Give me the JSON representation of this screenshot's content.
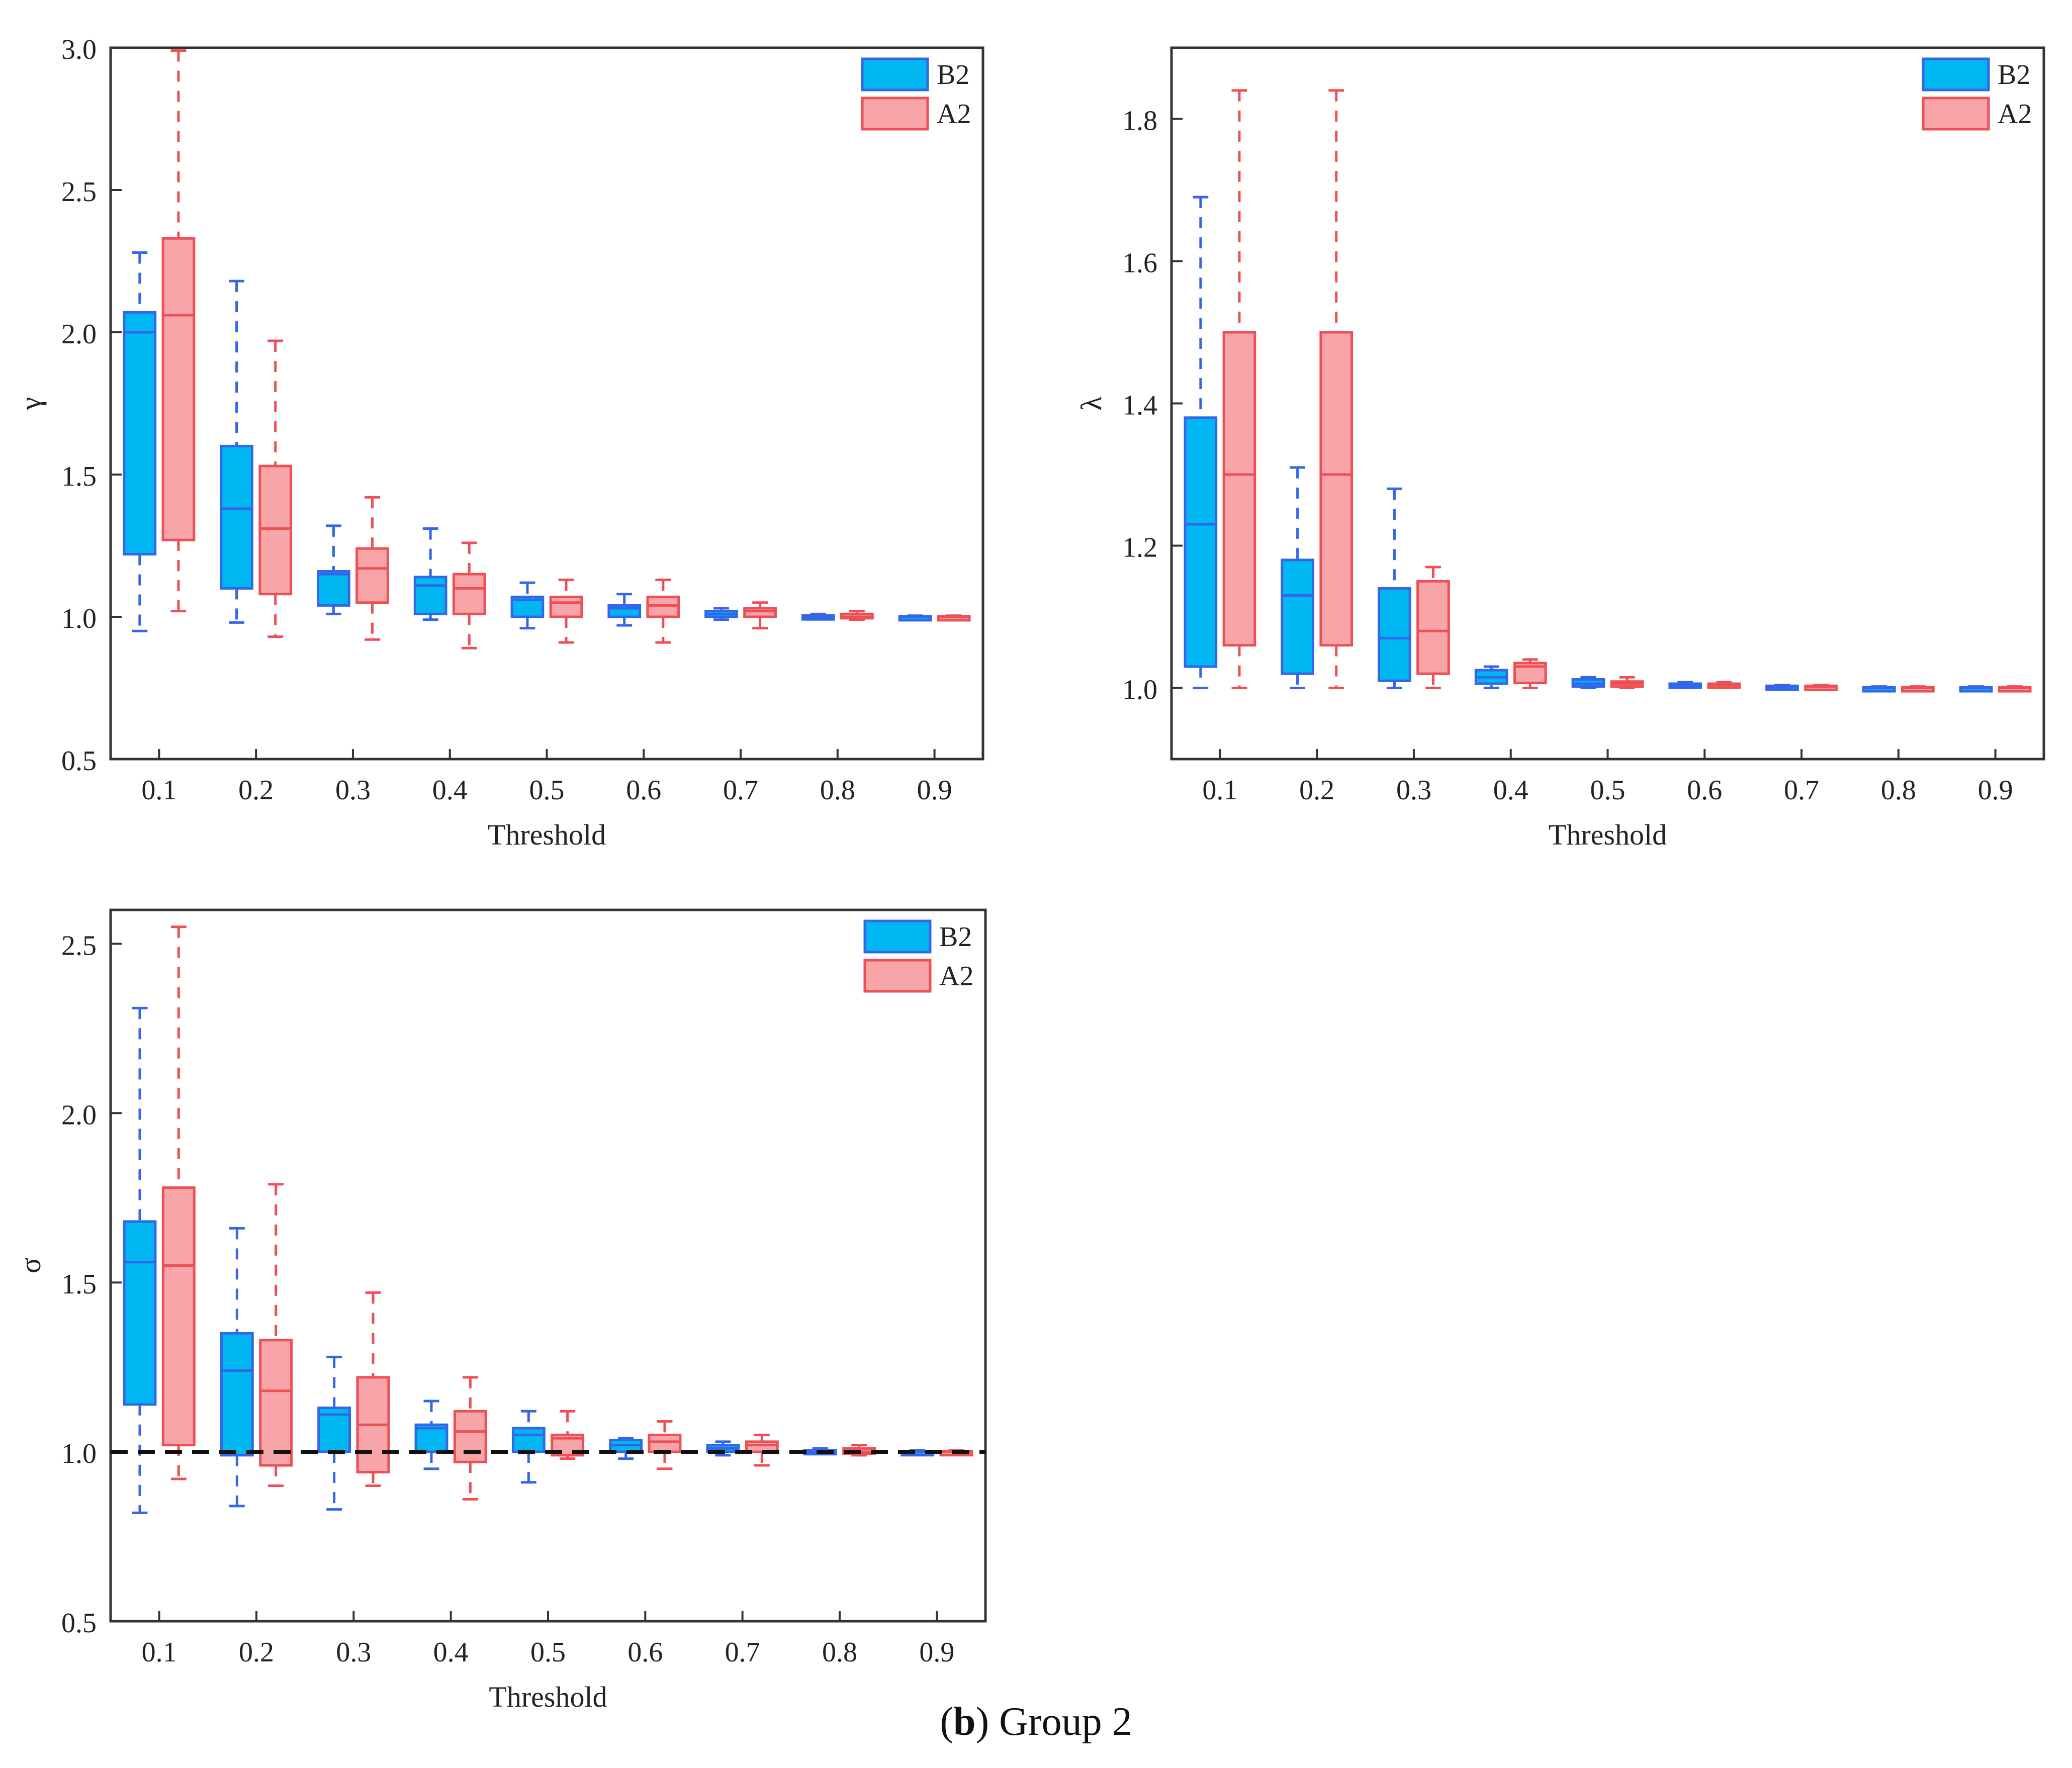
{
  "figure_caption": {
    "panel_label": "b",
    "text": "Group 2"
  },
  "colors": {
    "B2_fill": "#00B7F1",
    "B2_edge": "#3366E8",
    "A2_fill": "#F7A5A8",
    "A2_edge": "#EE4F54",
    "reference_line": "#111111",
    "axis": "#333333"
  },
  "chart_data": [
    {
      "type": "box",
      "id": "gamma",
      "ylabel": "γ",
      "xlabel": "Threshold",
      "categories": [
        "0.1",
        "0.2",
        "0.3",
        "0.4",
        "0.5",
        "0.6",
        "0.7",
        "0.8",
        "0.9"
      ],
      "ylim": [
        0.5,
        3.0
      ],
      "yticks": [
        "0.5",
        "1.0",
        "1.5",
        "2.0",
        "2.5",
        "3.0"
      ],
      "legend": [
        "B2",
        "A2"
      ],
      "legend_position": "top-right",
      "series": [
        {
          "name": "B2",
          "boxes": [
            {
              "min": 0.95,
              "q1": 1.22,
              "median": 2.0,
              "q3": 2.07,
              "max": 2.28
            },
            {
              "min": 0.98,
              "q1": 1.1,
              "median": 1.38,
              "q3": 1.6,
              "max": 2.18
            },
            {
              "min": 1.01,
              "q1": 1.04,
              "median": 1.15,
              "q3": 1.16,
              "max": 1.32
            },
            {
              "min": 0.99,
              "q1": 1.01,
              "median": 1.11,
              "q3": 1.14,
              "max": 1.31
            },
            {
              "min": 0.96,
              "q1": 1.0,
              "median": 1.06,
              "q3": 1.07,
              "max": 1.12
            },
            {
              "min": 0.97,
              "q1": 1.0,
              "median": 1.03,
              "q3": 1.04,
              "max": 1.08
            },
            {
              "min": 0.99,
              "q1": 1.0,
              "median": 1.01,
              "q3": 1.02,
              "max": 1.03
            },
            {
              "min": 1.0,
              "q1": 1.0,
              "median": 1.0,
              "q3": 1.005,
              "max": 1.01
            },
            {
              "min": 1.0,
              "q1": 1.0,
              "median": 1.0,
              "q3": 1.002,
              "max": 1.004
            }
          ]
        },
        {
          "name": "A2",
          "boxes": [
            {
              "min": 1.02,
              "q1": 1.27,
              "median": 2.06,
              "q3": 2.33,
              "max": 2.99
            },
            {
              "min": 0.93,
              "q1": 1.08,
              "median": 1.31,
              "q3": 1.53,
              "max": 1.97
            },
            {
              "min": 0.92,
              "q1": 1.05,
              "median": 1.17,
              "q3": 1.24,
              "max": 1.42
            },
            {
              "min": 0.89,
              "q1": 1.01,
              "median": 1.1,
              "q3": 1.15,
              "max": 1.26
            },
            {
              "min": 0.91,
              "q1": 1.0,
              "median": 1.05,
              "q3": 1.07,
              "max": 1.13
            },
            {
              "min": 0.91,
              "q1": 1.0,
              "median": 1.04,
              "q3": 1.07,
              "max": 1.13
            },
            {
              "min": 0.96,
              "q1": 1.0,
              "median": 1.02,
              "q3": 1.03,
              "max": 1.05
            },
            {
              "min": 0.99,
              "q1": 0.995,
              "median": 1.0,
              "q3": 1.01,
              "max": 1.02
            },
            {
              "min": 1.0,
              "q1": 1.0,
              "median": 1.0,
              "q3": 1.002,
              "max": 1.004
            }
          ]
        }
      ]
    },
    {
      "type": "box",
      "id": "lambda",
      "ylabel": "λ",
      "xlabel": "Threshold",
      "categories": [
        "0.1",
        "0.2",
        "0.3",
        "0.4",
        "0.5",
        "0.6",
        "0.7",
        "0.8",
        "0.9"
      ],
      "ylim": [
        0.9,
        1.9
      ],
      "yticks": [
        "1.0",
        "1.2",
        "1.4",
        "1.6",
        "1.8"
      ],
      "legend": [
        "B2",
        "A2"
      ],
      "legend_position": "top-right",
      "series": [
        {
          "name": "B2",
          "boxes": [
            {
              "min": 1.0,
              "q1": 1.03,
              "median": 1.23,
              "q3": 1.38,
              "max": 1.69
            },
            {
              "min": 1.0,
              "q1": 1.02,
              "median": 1.13,
              "q3": 1.18,
              "max": 1.31
            },
            {
              "min": 1.0,
              "q1": 1.01,
              "median": 1.07,
              "q3": 1.14,
              "max": 1.28
            },
            {
              "min": 1.0,
              "q1": 1.006,
              "median": 1.015,
              "q3": 1.025,
              "max": 1.03
            },
            {
              "min": 1.0,
              "q1": 1.002,
              "median": 1.006,
              "q3": 1.012,
              "max": 1.015
            },
            {
              "min": 1.0,
              "q1": 1.001,
              "median": 1.003,
              "q3": 1.006,
              "max": 1.008
            },
            {
              "min": 1.0,
              "q1": 1.0,
              "median": 1.001,
              "q3": 1.003,
              "max": 1.004
            },
            {
              "min": 1.0,
              "q1": 1.0,
              "median": 1.0,
              "q3": 1.001,
              "max": 1.002
            },
            {
              "min": 1.0,
              "q1": 1.0,
              "median": 1.0,
              "q3": 1.001,
              "max": 1.002
            }
          ]
        },
        {
          "name": "A2",
          "boxes": [
            {
              "min": 1.0,
              "q1": 1.06,
              "median": 1.3,
              "q3": 1.5,
              "max": 1.84
            },
            {
              "min": 1.0,
              "q1": 1.06,
              "median": 1.3,
              "q3": 1.5,
              "max": 1.84
            },
            {
              "min": 1.0,
              "q1": 1.02,
              "median": 1.08,
              "q3": 1.15,
              "max": 1.17
            },
            {
              "min": 1.0,
              "q1": 1.007,
              "median": 1.03,
              "q3": 1.035,
              "max": 1.04
            },
            {
              "min": 1.0,
              "q1": 1.002,
              "median": 1.006,
              "q3": 1.009,
              "max": 1.015
            },
            {
              "min": 1.0,
              "q1": 1.001,
              "median": 1.004,
              "q3": 1.006,
              "max": 1.008
            },
            {
              "min": 1.0,
              "q1": 1.0,
              "median": 1.002,
              "q3": 1.003,
              "max": 1.004
            },
            {
              "min": 1.0,
              "q1": 1.0,
              "median": 1.0,
              "q3": 1.001,
              "max": 1.002
            },
            {
              "min": 1.0,
              "q1": 1.0,
              "median": 1.0,
              "q3": 1.001,
              "max": 1.002
            }
          ]
        }
      ]
    },
    {
      "type": "box",
      "id": "sigma",
      "ylabel": "σ",
      "xlabel": "Threshold",
      "categories": [
        "0.1",
        "0.2",
        "0.3",
        "0.4",
        "0.5",
        "0.6",
        "0.7",
        "0.8",
        "0.9"
      ],
      "ylim": [
        0.5,
        2.6
      ],
      "yticks": [
        "0.5",
        "1.0",
        "1.5",
        "2.0",
        "2.5"
      ],
      "legend": [
        "B2",
        "A2"
      ],
      "legend_position": "top-right",
      "reference_line": 1.0,
      "series": [
        {
          "name": "B2",
          "boxes": [
            {
              "min": 0.82,
              "q1": 1.14,
              "median": 1.56,
              "q3": 1.68,
              "max": 2.31
            },
            {
              "min": 0.84,
              "q1": 0.99,
              "median": 1.24,
              "q3": 1.35,
              "max": 1.66
            },
            {
              "min": 0.83,
              "q1": 1.0,
              "median": 1.11,
              "q3": 1.13,
              "max": 1.28
            },
            {
              "min": 0.95,
              "q1": 1.0,
              "median": 1.07,
              "q3": 1.08,
              "max": 1.15
            },
            {
              "min": 0.91,
              "q1": 1.0,
              "median": 1.05,
              "q3": 1.07,
              "max": 1.12
            },
            {
              "min": 0.98,
              "q1": 1.0,
              "median": 1.02,
              "q3": 1.035,
              "max": 1.04
            },
            {
              "min": 0.99,
              "q1": 1.0,
              "median": 1.01,
              "q3": 1.02,
              "max": 1.03
            },
            {
              "min": 1.0,
              "q1": 1.0,
              "median": 1.0,
              "q3": 1.005,
              "max": 1.01
            },
            {
              "min": 1.0,
              "q1": 1.0,
              "median": 1.0,
              "q3": 1.002,
              "max": 1.004
            }
          ]
        },
        {
          "name": "A2",
          "boxes": [
            {
              "min": 0.92,
              "q1": 1.02,
              "median": 1.55,
              "q3": 1.78,
              "max": 2.55
            },
            {
              "min": 0.9,
              "q1": 0.96,
              "median": 1.18,
              "q3": 1.33,
              "max": 1.79
            },
            {
              "min": 0.9,
              "q1": 0.94,
              "median": 1.08,
              "q3": 1.22,
              "max": 1.47
            },
            {
              "min": 0.86,
              "q1": 0.97,
              "median": 1.06,
              "q3": 1.12,
              "max": 1.22
            },
            {
              "min": 0.98,
              "q1": 0.99,
              "median": 1.04,
              "q3": 1.05,
              "max": 1.12
            },
            {
              "min": 0.95,
              "q1": 1.0,
              "median": 1.03,
              "q3": 1.05,
              "max": 1.09
            },
            {
              "min": 0.96,
              "q1": 1.0,
              "median": 1.02,
              "q3": 1.03,
              "max": 1.05
            },
            {
              "min": 0.99,
              "q1": 0.995,
              "median": 1.0,
              "q3": 1.01,
              "max": 1.02
            },
            {
              "min": 1.0,
              "q1": 1.0,
              "median": 1.0,
              "q3": 1.002,
              "max": 1.004
            }
          ]
        }
      ]
    }
  ]
}
